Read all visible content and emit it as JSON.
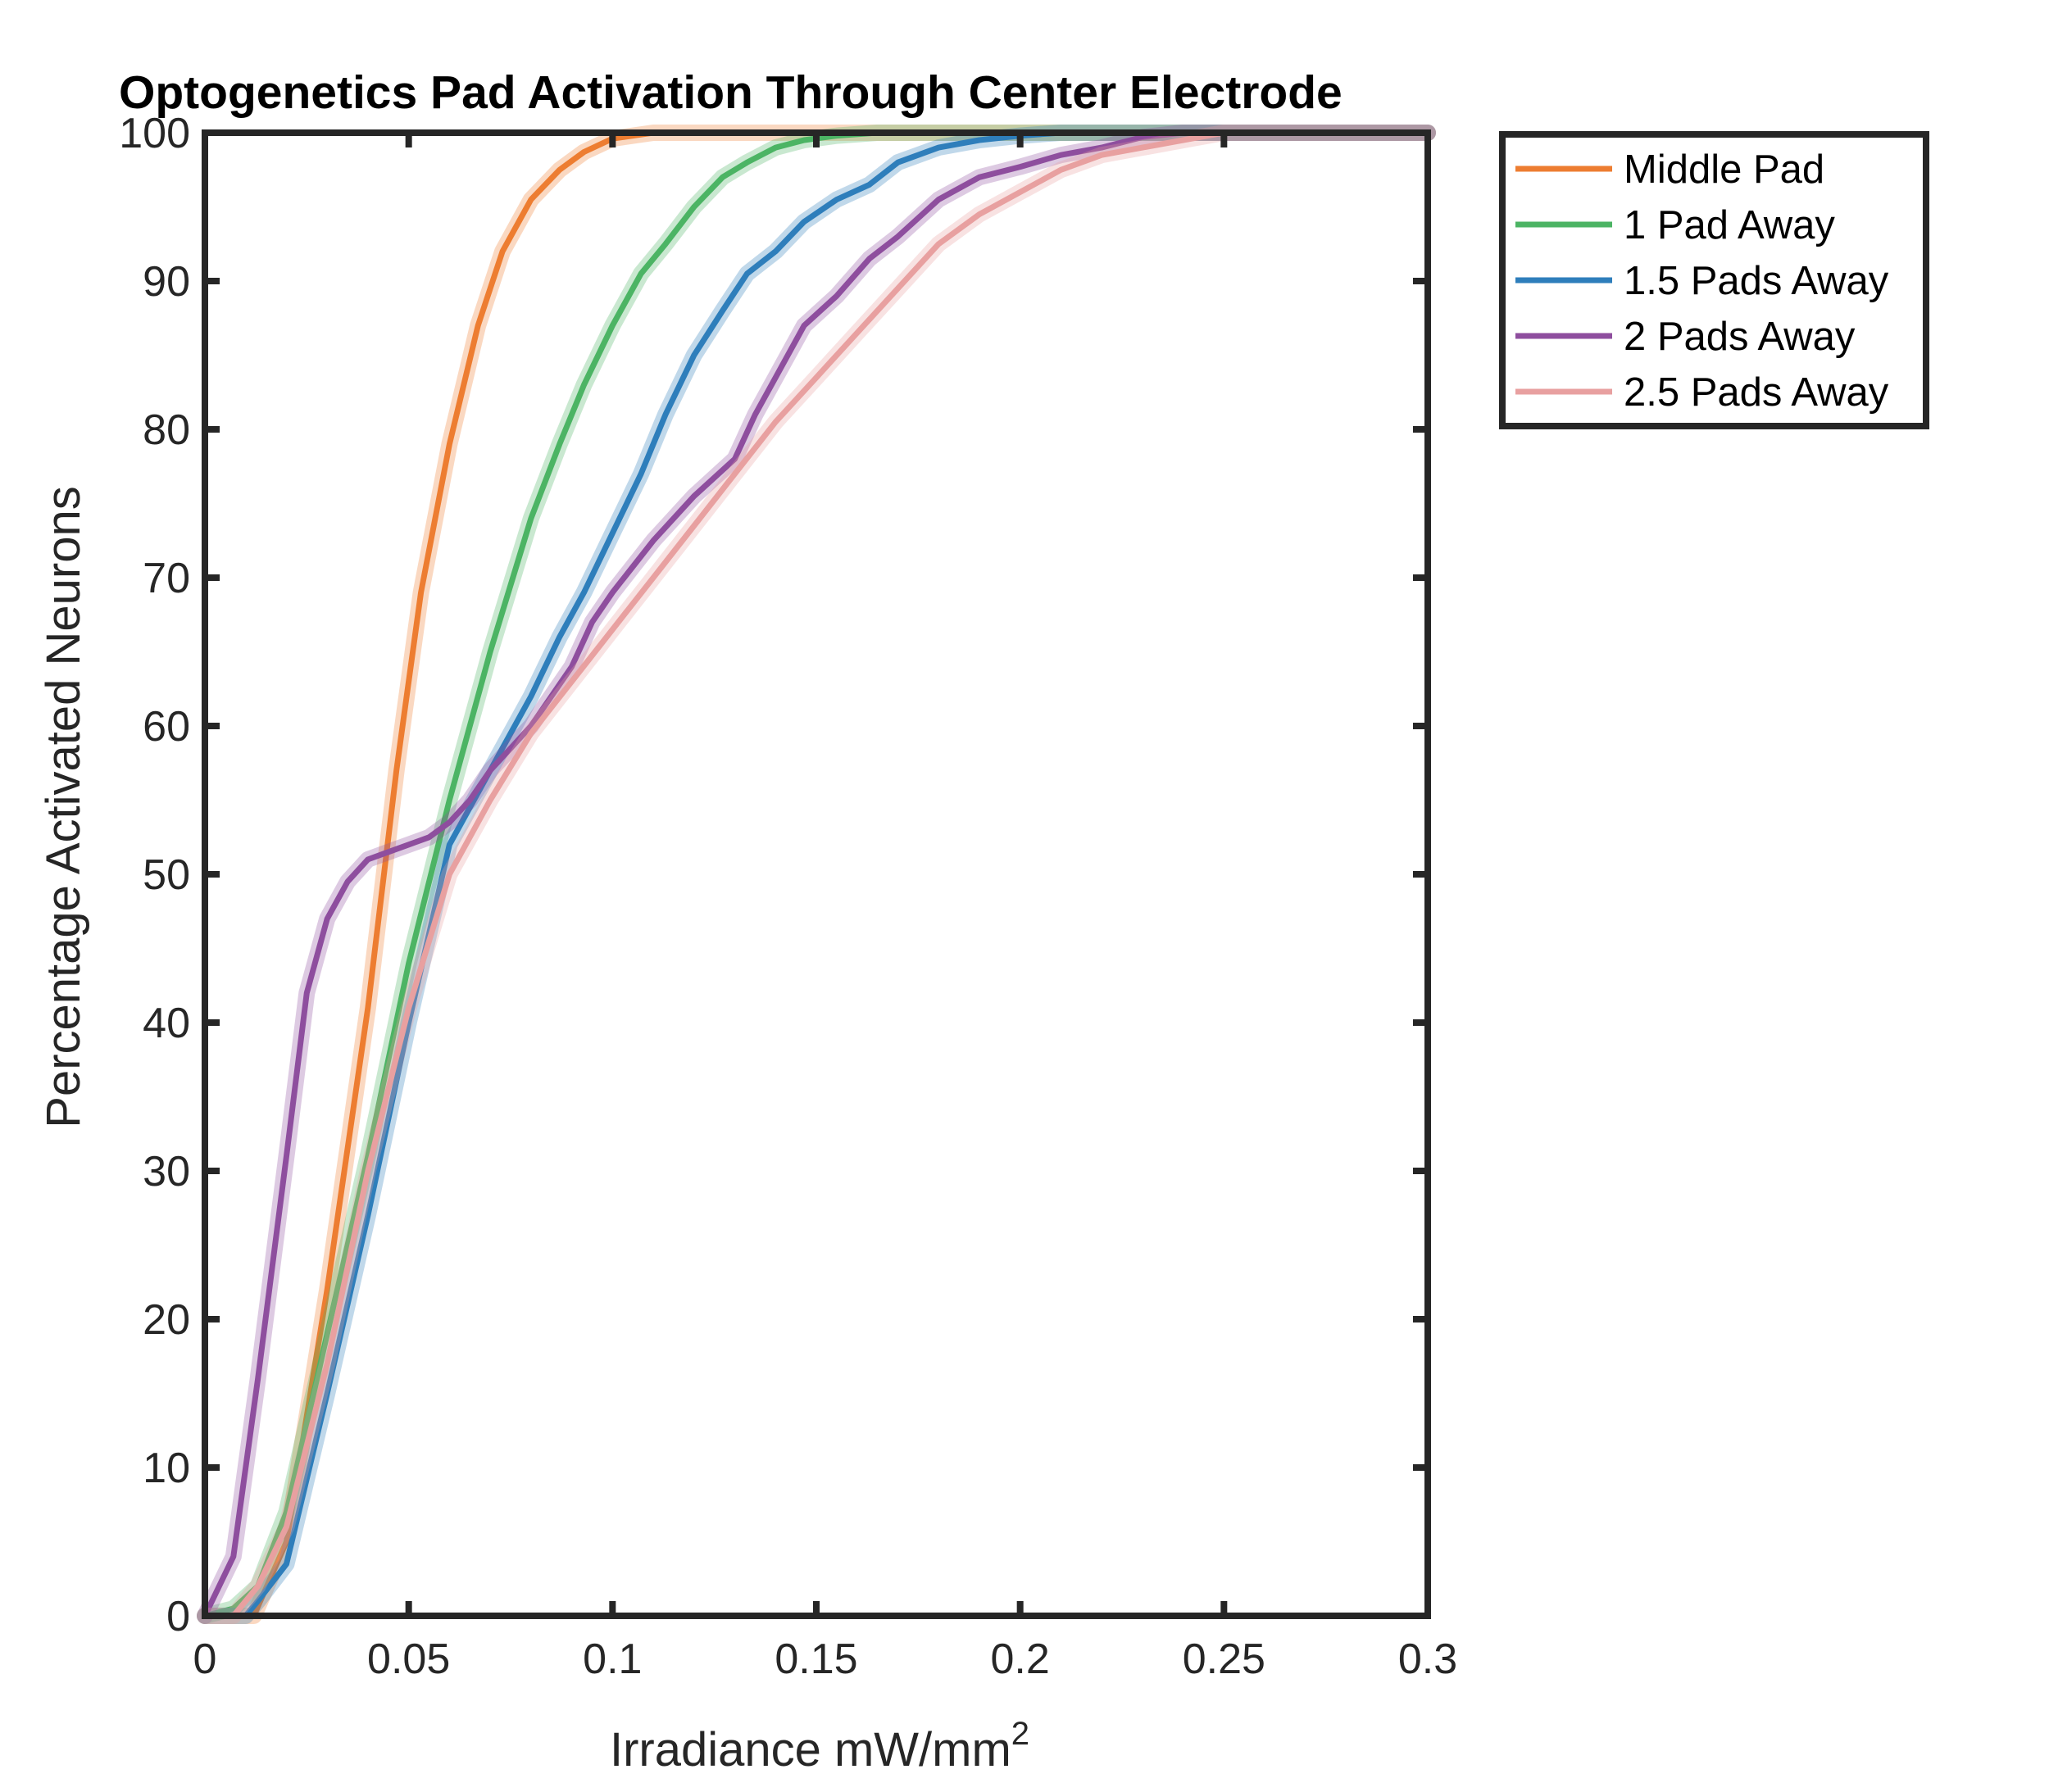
{
  "chart_data": {
    "type": "line",
    "title": "Optogenetics Pad Activation Through Center Electrode",
    "xlabel": "Irradiance mW/mm",
    "xlabel_superscript": "2",
    "ylabel": "Percentage Activated Neurons",
    "xlim": [
      0,
      0.3
    ],
    "ylim": [
      0,
      100
    ],
    "xticks": [
      "0",
      "0.05",
      "0.1",
      "0.15",
      "0.2",
      "0.25",
      "0.3"
    ],
    "yticks": [
      "0",
      "10",
      "20",
      "30",
      "40",
      "50",
      "60",
      "70",
      "80",
      "90",
      "100"
    ],
    "grid": false,
    "legend_position": "outside-right",
    "series": [
      {
        "name": "Middle Pad",
        "color": "#ED7D31",
        "x": [
          0,
          0.012,
          0.02,
          0.03,
          0.04,
          0.047,
          0.053,
          0.06,
          0.067,
          0.073,
          0.08,
          0.087,
          0.093,
          0.1,
          0.11,
          0.3
        ],
        "y": [
          0,
          0,
          5,
          22,
          41,
          57,
          69,
          79,
          87,
          92,
          95.5,
          97.5,
          98.7,
          99.6,
          100,
          100
        ]
      },
      {
        "name": "1 Pad Away",
        "color": "#4CB464",
        "x": [
          0,
          0.007,
          0.013,
          0.02,
          0.03,
          0.04,
          0.05,
          0.06,
          0.07,
          0.08,
          0.087,
          0.093,
          0.1,
          0.107,
          0.113,
          0.12,
          0.127,
          0.133,
          0.14,
          0.147,
          0.155,
          0.165,
          0.3
        ],
        "y": [
          0,
          0.5,
          2,
          7,
          19,
          31,
          44,
          55,
          65,
          74,
          79,
          83,
          87,
          90.5,
          92.5,
          95,
          97,
          98,
          99,
          99.5,
          99.8,
          100,
          100
        ]
      },
      {
        "name": "1.5 Pads Away",
        "color": "#2E7EBB",
        "x": [
          0,
          0.01,
          0.013,
          0.02,
          0.03,
          0.04,
          0.05,
          0.06,
          0.07,
          0.08,
          0.087,
          0.093,
          0.1,
          0.107,
          0.113,
          0.12,
          0.127,
          0.133,
          0.14,
          0.147,
          0.155,
          0.163,
          0.17,
          0.18,
          0.19,
          0.2,
          0.21,
          0.3
        ],
        "y": [
          0,
          0,
          1,
          3.5,
          15,
          27,
          40,
          52,
          57,
          62,
          66,
          69,
          73,
          77,
          81,
          85,
          88,
          90.5,
          92,
          94,
          95.5,
          96.5,
          98,
          99,
          99.5,
          99.8,
          100,
          100
        ]
      },
      {
        "name": "2 Pads Away",
        "color": "#8E4E9E",
        "x": [
          0,
          0.007,
          0.013,
          0.02,
          0.025,
          0.03,
          0.035,
          0.04,
          0.045,
          0.05,
          0.055,
          0.06,
          0.065,
          0.07,
          0.075,
          0.08,
          0.085,
          0.09,
          0.095,
          0.1,
          0.11,
          0.12,
          0.13,
          0.135,
          0.14,
          0.147,
          0.155,
          0.163,
          0.17,
          0.18,
          0.19,
          0.2,
          0.21,
          0.22,
          0.23,
          0.24,
          0.3
        ],
        "y": [
          0,
          4,
          16,
          31,
          42,
          47,
          49.5,
          51,
          51.5,
          52,
          52.5,
          53.5,
          55,
          57,
          58.5,
          60,
          62,
          64,
          67,
          69,
          72.5,
          75.5,
          78,
          81,
          83.5,
          87,
          89,
          91.5,
          93,
          95.5,
          97,
          97.7,
          98.5,
          99,
          99.7,
          100,
          100
        ]
      },
      {
        "name": "2.5 Pads Away",
        "color": "#E8A0A0",
        "x": [
          0,
          0.007,
          0.013,
          0.02,
          0.03,
          0.04,
          0.05,
          0.06,
          0.07,
          0.08,
          0.09,
          0.1,
          0.11,
          0.12,
          0.13,
          0.14,
          0.15,
          0.16,
          0.17,
          0.18,
          0.19,
          0.2,
          0.21,
          0.22,
          0.23,
          0.24,
          0.25,
          0.26,
          0.3
        ],
        "y": [
          0,
          0,
          2,
          6,
          17,
          30,
          41,
          50,
          55,
          59.5,
          63,
          66.5,
          70,
          73.5,
          77,
          80.5,
          83.5,
          86.5,
          89.5,
          92.5,
          94.5,
          96,
          97.5,
          98.5,
          99,
          99.5,
          100,
          100,
          100
        ]
      }
    ]
  }
}
